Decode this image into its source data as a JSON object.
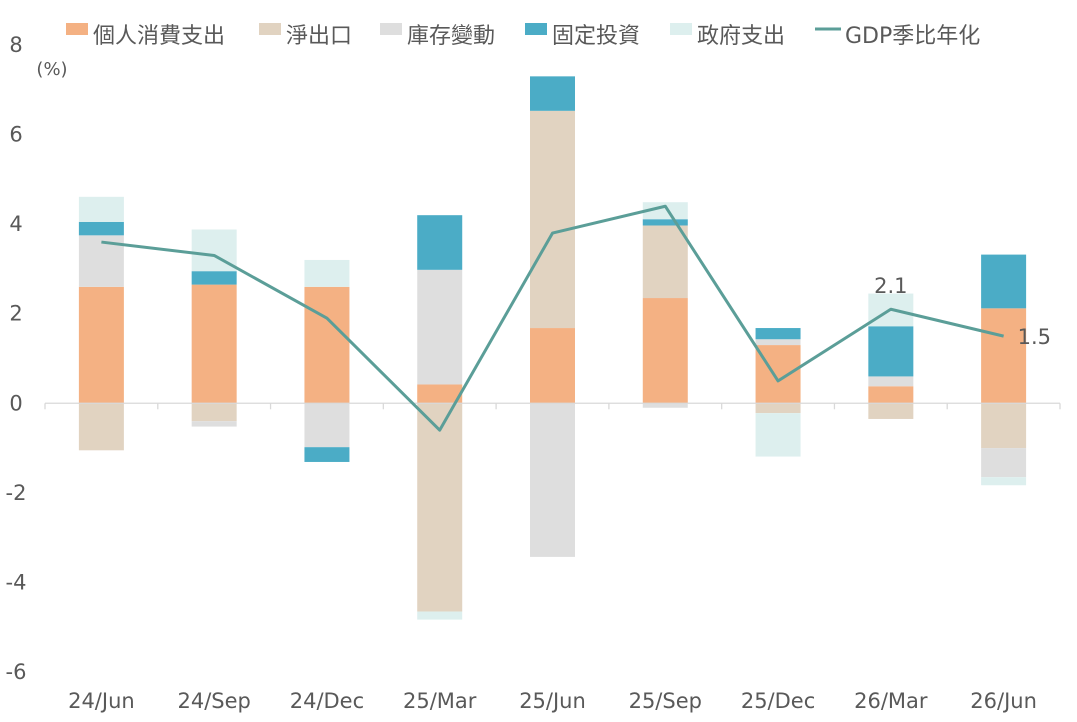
{
  "chart_data": {
    "type": "bar",
    "stacked": true,
    "ylabel": "(%)",
    "ylim": [
      -6,
      8
    ],
    "yticks": [
      -6,
      -4,
      -2,
      0,
      2,
      4,
      6,
      8
    ],
    "categories": [
      "24/Jun",
      "24/Sep",
      "24/Dec",
      "25/Mar",
      "25/Jun",
      "25/Sep",
      "25/Dec",
      "26/Mar",
      "26/Jun"
    ],
    "series": [
      {
        "name": "個人消費支出",
        "color": "#F4B183",
        "values": [
          2.6,
          2.65,
          2.6,
          0.42,
          1.68,
          2.35,
          1.3,
          0.38,
          2.12
        ]
      },
      {
        "name": "淨出口",
        "color": "#E1D3C1",
        "values": [
          -1.05,
          -0.4,
          0,
          -4.65,
          4.85,
          1.62,
          -0.22,
          -0.35,
          -1.0
        ]
      },
      {
        "name": "庫存變動",
        "color": "#DEDEDE",
        "values": [
          1.15,
          -0.12,
          -0.98,
          2.56,
          -3.43,
          -0.1,
          0.13,
          0.22,
          -0.65
        ]
      },
      {
        "name": "固定投資",
        "color": "#4BACC6",
        "values": [
          0.3,
          0.3,
          -0.33,
          1.22,
          0.77,
          0.14,
          0.25,
          1.12,
          1.2
        ]
      },
      {
        "name": "政府支出",
        "color": "#DDEFEE",
        "values": [
          0.56,
          0.93,
          0.6,
          -0.18,
          0,
          0.38,
          -0.97,
          0.73,
          -0.18
        ]
      }
    ],
    "line": {
      "name": "GDP季比年化",
      "color": "#5B9E98",
      "values": [
        3.6,
        3.3,
        1.9,
        -0.6,
        3.8,
        4.4,
        0.5,
        2.1,
        1.5
      ]
    },
    "annotations": [
      {
        "category": "26/Mar",
        "text": "2.1"
      },
      {
        "category": "26/Jun",
        "text": "1.5"
      }
    ],
    "legend": "top",
    "grid": false
  }
}
